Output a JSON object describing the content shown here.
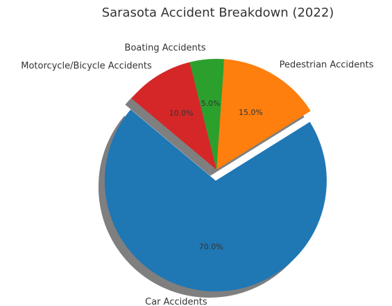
{
  "chart_data": {
    "type": "pie",
    "title": "Sarasota Accident Breakdown (2022)",
    "categories": [
      "Car Accidents",
      "Pedestrian Accidents",
      "Boating Accidents",
      "Motorcycle/Bicycle Accidents"
    ],
    "values": [
      70.0,
      15.0,
      5.0,
      10.0
    ],
    "value_labels": [
      "70.0%",
      "15.0%",
      "5.0%",
      "10.0%"
    ],
    "colors": [
      "#1f77b4",
      "#ff7f0e",
      "#2ca02c",
      "#d62728"
    ],
    "exploded": [
      "Car Accidents"
    ],
    "shadow": true,
    "start_angle_deg": 140,
    "direction": "counterclockwise",
    "legend": "none"
  }
}
